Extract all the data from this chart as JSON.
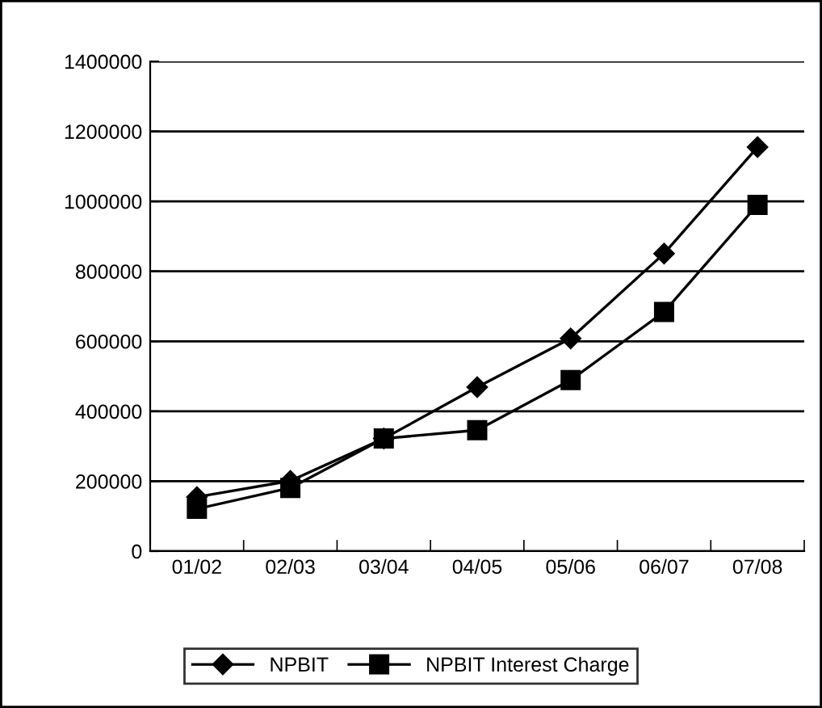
{
  "chart_data": {
    "type": "line",
    "categories": [
      "01/02",
      "02/03",
      "03/04",
      "04/05",
      "05/06",
      "06/07",
      "07/08"
    ],
    "series": [
      {
        "name": "NPBIT",
        "color": "#000000",
        "marker": "diamond",
        "values": [
          155000,
          201000,
          322000,
          469000,
          608000,
          851000,
          1155000
        ]
      },
      {
        "name": "NPBIT Interest Charge",
        "color": "#000000",
        "marker": "square",
        "values": [
          121000,
          181000,
          322000,
          346000,
          489000,
          684000,
          990000
        ]
      }
    ],
    "ylim": [
      0,
      1400000
    ],
    "yticks": [
      0,
      200000,
      400000,
      600000,
      800000,
      1000000,
      1200000,
      1400000
    ],
    "grid": "y",
    "legend": "bottom",
    "line_style": "solid"
  }
}
